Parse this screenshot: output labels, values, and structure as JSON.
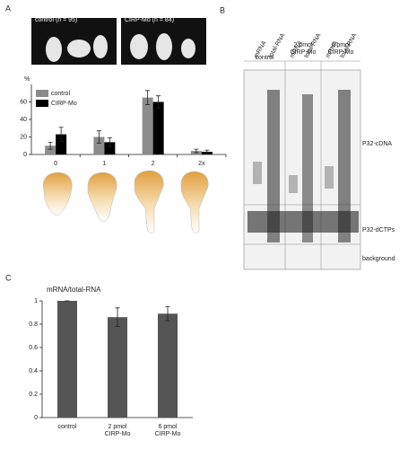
{
  "panels": [
    "A",
    "B",
    "C"
  ],
  "images": {
    "captions": [
      "control (n = 95)",
      "CIRP-Mo (n = 84)"
    ]
  },
  "blot": {
    "lane_labels": [
      "mRNA",
      "total-RNA",
      "mRNA",
      "total-RNA",
      "mRNA",
      "total-RNA"
    ],
    "group_labels": [
      "control",
      "2 pmol\nCIRP-Mo",
      "6 pmol\nCIRP-Mo"
    ],
    "row_labels": [
      "P32-cDNA",
      "P32-dCTPs",
      "background"
    ]
  },
  "chart_data": [
    {
      "type": "bar",
      "ylabel": "%",
      "categories": [
        "0",
        "1",
        "2",
        "2x"
      ],
      "series": [
        {
          "name": "control",
          "color": "#8c8c8c",
          "values": [
            10,
            20,
            65,
            4
          ],
          "errors": [
            4,
            7,
            8,
            2
          ]
        },
        {
          "name": "CIRP-Mo",
          "color": "#000000",
          "values": [
            23,
            14,
            60,
            3
          ],
          "errors": [
            8,
            5,
            7,
            2
          ]
        }
      ],
      "ylim": [
        0,
        80
      ],
      "yticks": [
        0,
        20,
        40,
        60
      ]
    },
    {
      "type": "bar",
      "title": "mRNA/total-RNA",
      "categories": [
        "control",
        "2 pmol\nCIRP-Mo",
        "6 pmol\nCIRP-Mo"
      ],
      "series": [
        {
          "color": "#555555",
          "values": [
            1,
            0.86,
            0.89
          ],
          "errors": [
            0,
            0.08,
            0.06
          ]
        }
      ],
      "ylim": [
        0,
        1
      ],
      "yticks": [
        0,
        0.2,
        0.4,
        0.6,
        0.8,
        1
      ]
    }
  ]
}
